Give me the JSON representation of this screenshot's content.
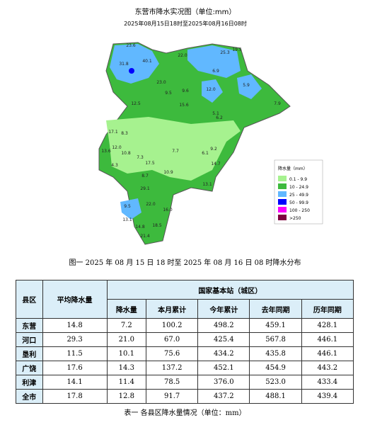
{
  "map": {
    "title": "东营市降水实况图（单位:mm）",
    "subtitle": "2025年08月15日18时至2025年08月16日08时",
    "stations": [
      "23.6",
      "31.8",
      "40.1",
      "22.0",
      "25.3",
      "19.5",
      "6.9",
      "5.9",
      "23.0",
      "9.5",
      "12.0",
      "9.6",
      "15.6",
      "12.5",
      "7.9",
      "5.1",
      "6.2",
      "17.1",
      "8.3",
      "12.0",
      "13.6",
      "10.8",
      "7.7",
      "7.3",
      "4.3",
      "10.9",
      "6.1",
      "9.2",
      "14.7",
      "13.1",
      "8.7",
      "29.1",
      "22.0",
      "9.5",
      "16.0",
      "14.8",
      "18.5",
      "21.4",
      "13.1",
      "17.5"
    ],
    "legend": {
      "title": "降水量（mm）",
      "items": [
        {
          "label": "0.1 - 9.9",
          "color": "#a6f28f"
        },
        {
          "label": "10 - 24.9",
          "color": "#3dba3d"
        },
        {
          "label": "25 - 49.9",
          "color": "#61b8ff"
        },
        {
          "label": "50 - 99.9",
          "color": "#0000fe"
        },
        {
          "label": "100 - 250",
          "color": "#fa00fa"
        },
        {
          "label": ">250",
          "color": "#800040"
        }
      ]
    }
  },
  "figure_caption": "图一 2025 年 08 月 15 日 18 时至 2025 年 08 月 16 日 08 时降水分布",
  "table": {
    "header": {
      "county": "县区",
      "average": "平均降水量",
      "group": "国家基本站（城区）",
      "columns": [
        "降水量",
        "本月累计",
        "今年累计",
        "去年同期",
        "历年同期"
      ]
    },
    "rows": [
      [
        "东营",
        "14.8",
        "7.2",
        "100.2",
        "498.2",
        "459.1",
        "428.1"
      ],
      [
        "河口",
        "29.3",
        "21.0",
        "67.0",
        "425.4",
        "567.8",
        "446.1"
      ],
      [
        "垦利",
        "11.5",
        "10.1",
        "75.6",
        "434.2",
        "435.8",
        "446.1"
      ],
      [
        "广饶",
        "17.6",
        "14.3",
        "137.2",
        "452.1",
        "454.9",
        "443.2"
      ],
      [
        "利津",
        "14.1",
        "11.4",
        "78.5",
        "376.0",
        "523.0",
        "433.4"
      ],
      [
        "全市",
        "17.8",
        "12.8",
        "91.7",
        "437.2",
        "488.1",
        "439.4"
      ]
    ],
    "caption": "表一 各县区降水量情况（单位：mm）"
  }
}
